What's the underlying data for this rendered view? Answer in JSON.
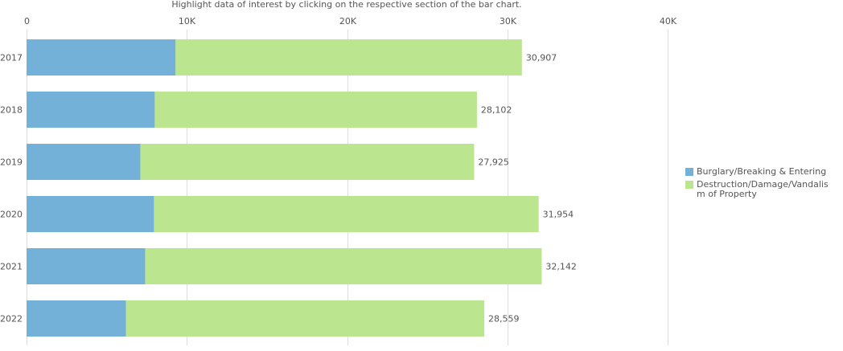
{
  "instruction": "Highlight data of interest by clicking on the respective section of the bar chart.",
  "chart_data": {
    "type": "bar",
    "orientation": "horizontal",
    "stacked": true,
    "categories": [
      "2017",
      "2018",
      "2019",
      "2020",
      "2021",
      "2022"
    ],
    "series": [
      {
        "name": "Burglary/Breaking & Entering",
        "color": "#74b1d9",
        "values": [
          9300,
          8000,
          7100,
          7950,
          7400,
          6200
        ]
      },
      {
        "name": "Destruction/Damage/Vandalism of Property",
        "color": "#bce590",
        "values": [
          21607,
          20102,
          20825,
          24004,
          24742,
          22359
        ]
      }
    ],
    "totals": [
      "30,907",
      "28,102",
      "27,925",
      "31,954",
      "32,142",
      "28,559"
    ],
    "total_values": [
      30907,
      28102,
      27925,
      31954,
      32142,
      28559
    ],
    "xlim": [
      0,
      40000
    ],
    "x_ticks": [
      0,
      10000,
      20000,
      30000,
      40000
    ],
    "x_tick_labels": [
      "0",
      "10K",
      "20K",
      "30K",
      "40K"
    ],
    "grid": true,
    "legend_position": "right"
  }
}
